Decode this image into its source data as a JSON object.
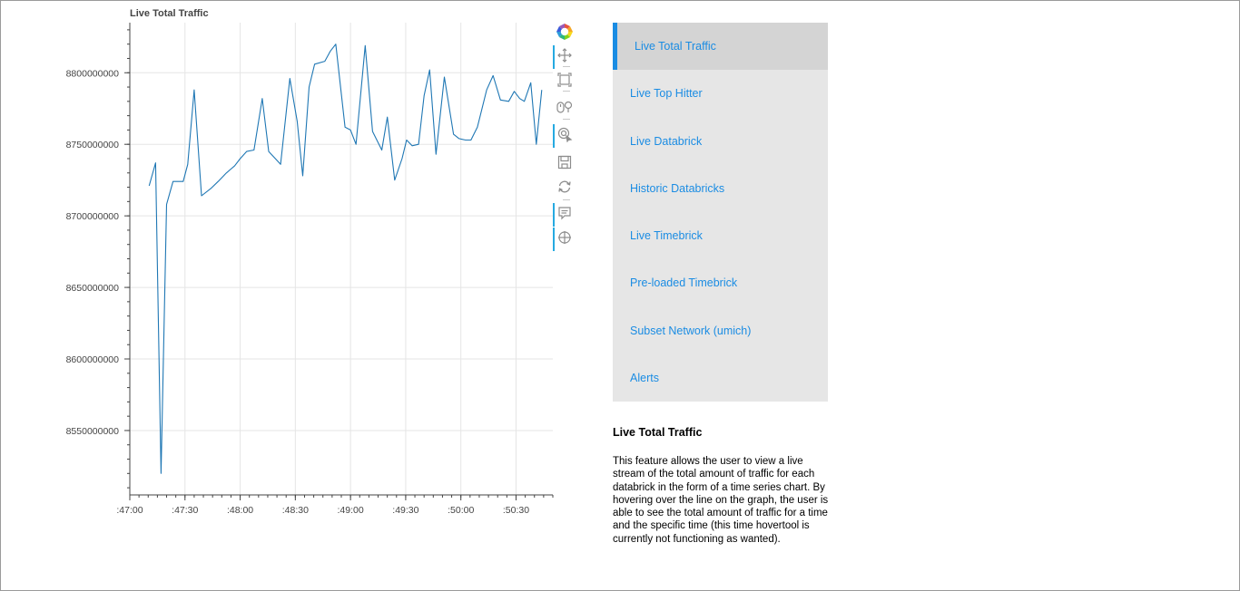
{
  "plot": {
    "title": "Live Total Traffic"
  },
  "toolbar": {
    "tools": [
      {
        "name": "bokeh-logo-icon",
        "active": false
      },
      {
        "name": "pan-icon",
        "active": true
      },
      {
        "name": "box-zoom-icon",
        "active": false
      },
      {
        "name": "wheel-zoom-icon",
        "active": false
      },
      {
        "name": "tap-select-icon",
        "active": true
      },
      {
        "name": "save-icon",
        "active": false
      },
      {
        "name": "reset-icon",
        "active": false
      },
      {
        "name": "hover-icon",
        "active": true
      },
      {
        "name": "crosshair-icon",
        "active": true
      }
    ]
  },
  "menu": {
    "items": [
      {
        "label": "Live Total Traffic",
        "active": true
      },
      {
        "label": "Live Top Hitter",
        "active": false
      },
      {
        "label": "Live Databrick",
        "active": false
      },
      {
        "label": "Historic Databricks",
        "active": false
      },
      {
        "label": "Live Timebrick",
        "active": false
      },
      {
        "label": "Pre-loaded Timebrick",
        "active": false
      },
      {
        "label": "Subset Network (umich)",
        "active": false
      },
      {
        "label": "Alerts",
        "active": false
      }
    ]
  },
  "description": {
    "title": "Live Total Traffic",
    "body": "This feature allows the user to view a live stream of the total amount of traffic for each databrick in the form of a time series chart. By hovering over the line on the graph, the user is able to see the total amount of traffic for a time and the specific time (this time hovertool is currently not functioning as wanted)."
  },
  "colors": {
    "line": "#1f77b4",
    "grid": "#e5e5e5",
    "menu_bg": "#e6e6e6",
    "menu_active_bg": "#d4d4d4",
    "link": "#1a8ce3",
    "toolbar_active": "#26aae1"
  },
  "chart_data": {
    "type": "line",
    "title": "Live Total Traffic",
    "xlabel": "",
    "ylabel": "",
    "grid": true,
    "legend": "none",
    "x_unit": "seconds after 47:00",
    "xlim": [
      0,
      230
    ],
    "ylim": [
      8505000000,
      8835000000
    ],
    "x_ticks": [
      0,
      30,
      60,
      90,
      120,
      150,
      180,
      210
    ],
    "x_tick_labels": [
      ":47:00",
      ":47:30",
      ":48:00",
      ":48:30",
      ":49:00",
      ":49:30",
      ":50:00",
      ":50:30"
    ],
    "y_ticks": [
      8550000000,
      8600000000,
      8650000000,
      8700000000,
      8750000000,
      8800000000
    ],
    "y_tick_labels": [
      "8550000000",
      "8600000000",
      "8650000000",
      "8700000000",
      "8750000000",
      "8800000000"
    ],
    "series": [
      {
        "x": [
          10.5,
          14,
          17,
          20,
          23.5,
          29,
          31.5,
          35,
          39,
          44,
          48,
          52.5,
          57,
          60,
          63.5,
          67.5,
          72,
          75.5,
          82,
          87,
          91,
          94,
          97.5,
          100.5,
          106,
          109,
          112,
          117,
          120,
          123,
          128,
          132,
          137,
          140,
          144,
          148,
          150.5,
          153.5,
          157,
          160,
          163,
          166.5,
          171,
          176,
          179,
          182.5,
          185.5,
          189,
          194,
          197.5,
          201.5,
          206,
          209,
          212,
          214.5,
          218,
          221,
          224
        ],
        "y": [
          8721000000,
          8737000000,
          8520000000,
          8708000000,
          8724000000,
          8724000000,
          8736000000,
          8788000000,
          8714000000,
          8719000000,
          8724000000,
          8730000000,
          8735000000,
          8740000000,
          8745000000,
          8746000000,
          8782000000,
          8745000000,
          8736000000,
          8796000000,
          8766000000,
          8728000000,
          8790000000,
          8806000000,
          8808000000,
          8815000000,
          8820000000,
          8762000000,
          8760000000,
          8750000000,
          8819000000,
          8759000000,
          8746000000,
          8769000000,
          8725000000,
          8740000000,
          8753000000,
          8749000000,
          8750000000,
          8784000000,
          8802000000,
          8743000000,
          8797000000,
          8757000000,
          8754000000,
          8753000000,
          8753000000,
          8762000000,
          8788000000,
          8798000000,
          8781000000,
          8780000000,
          8787000000,
          8782000000,
          8780000000,
          8793000000,
          8750000000,
          8788000000
        ]
      }
    ]
  }
}
